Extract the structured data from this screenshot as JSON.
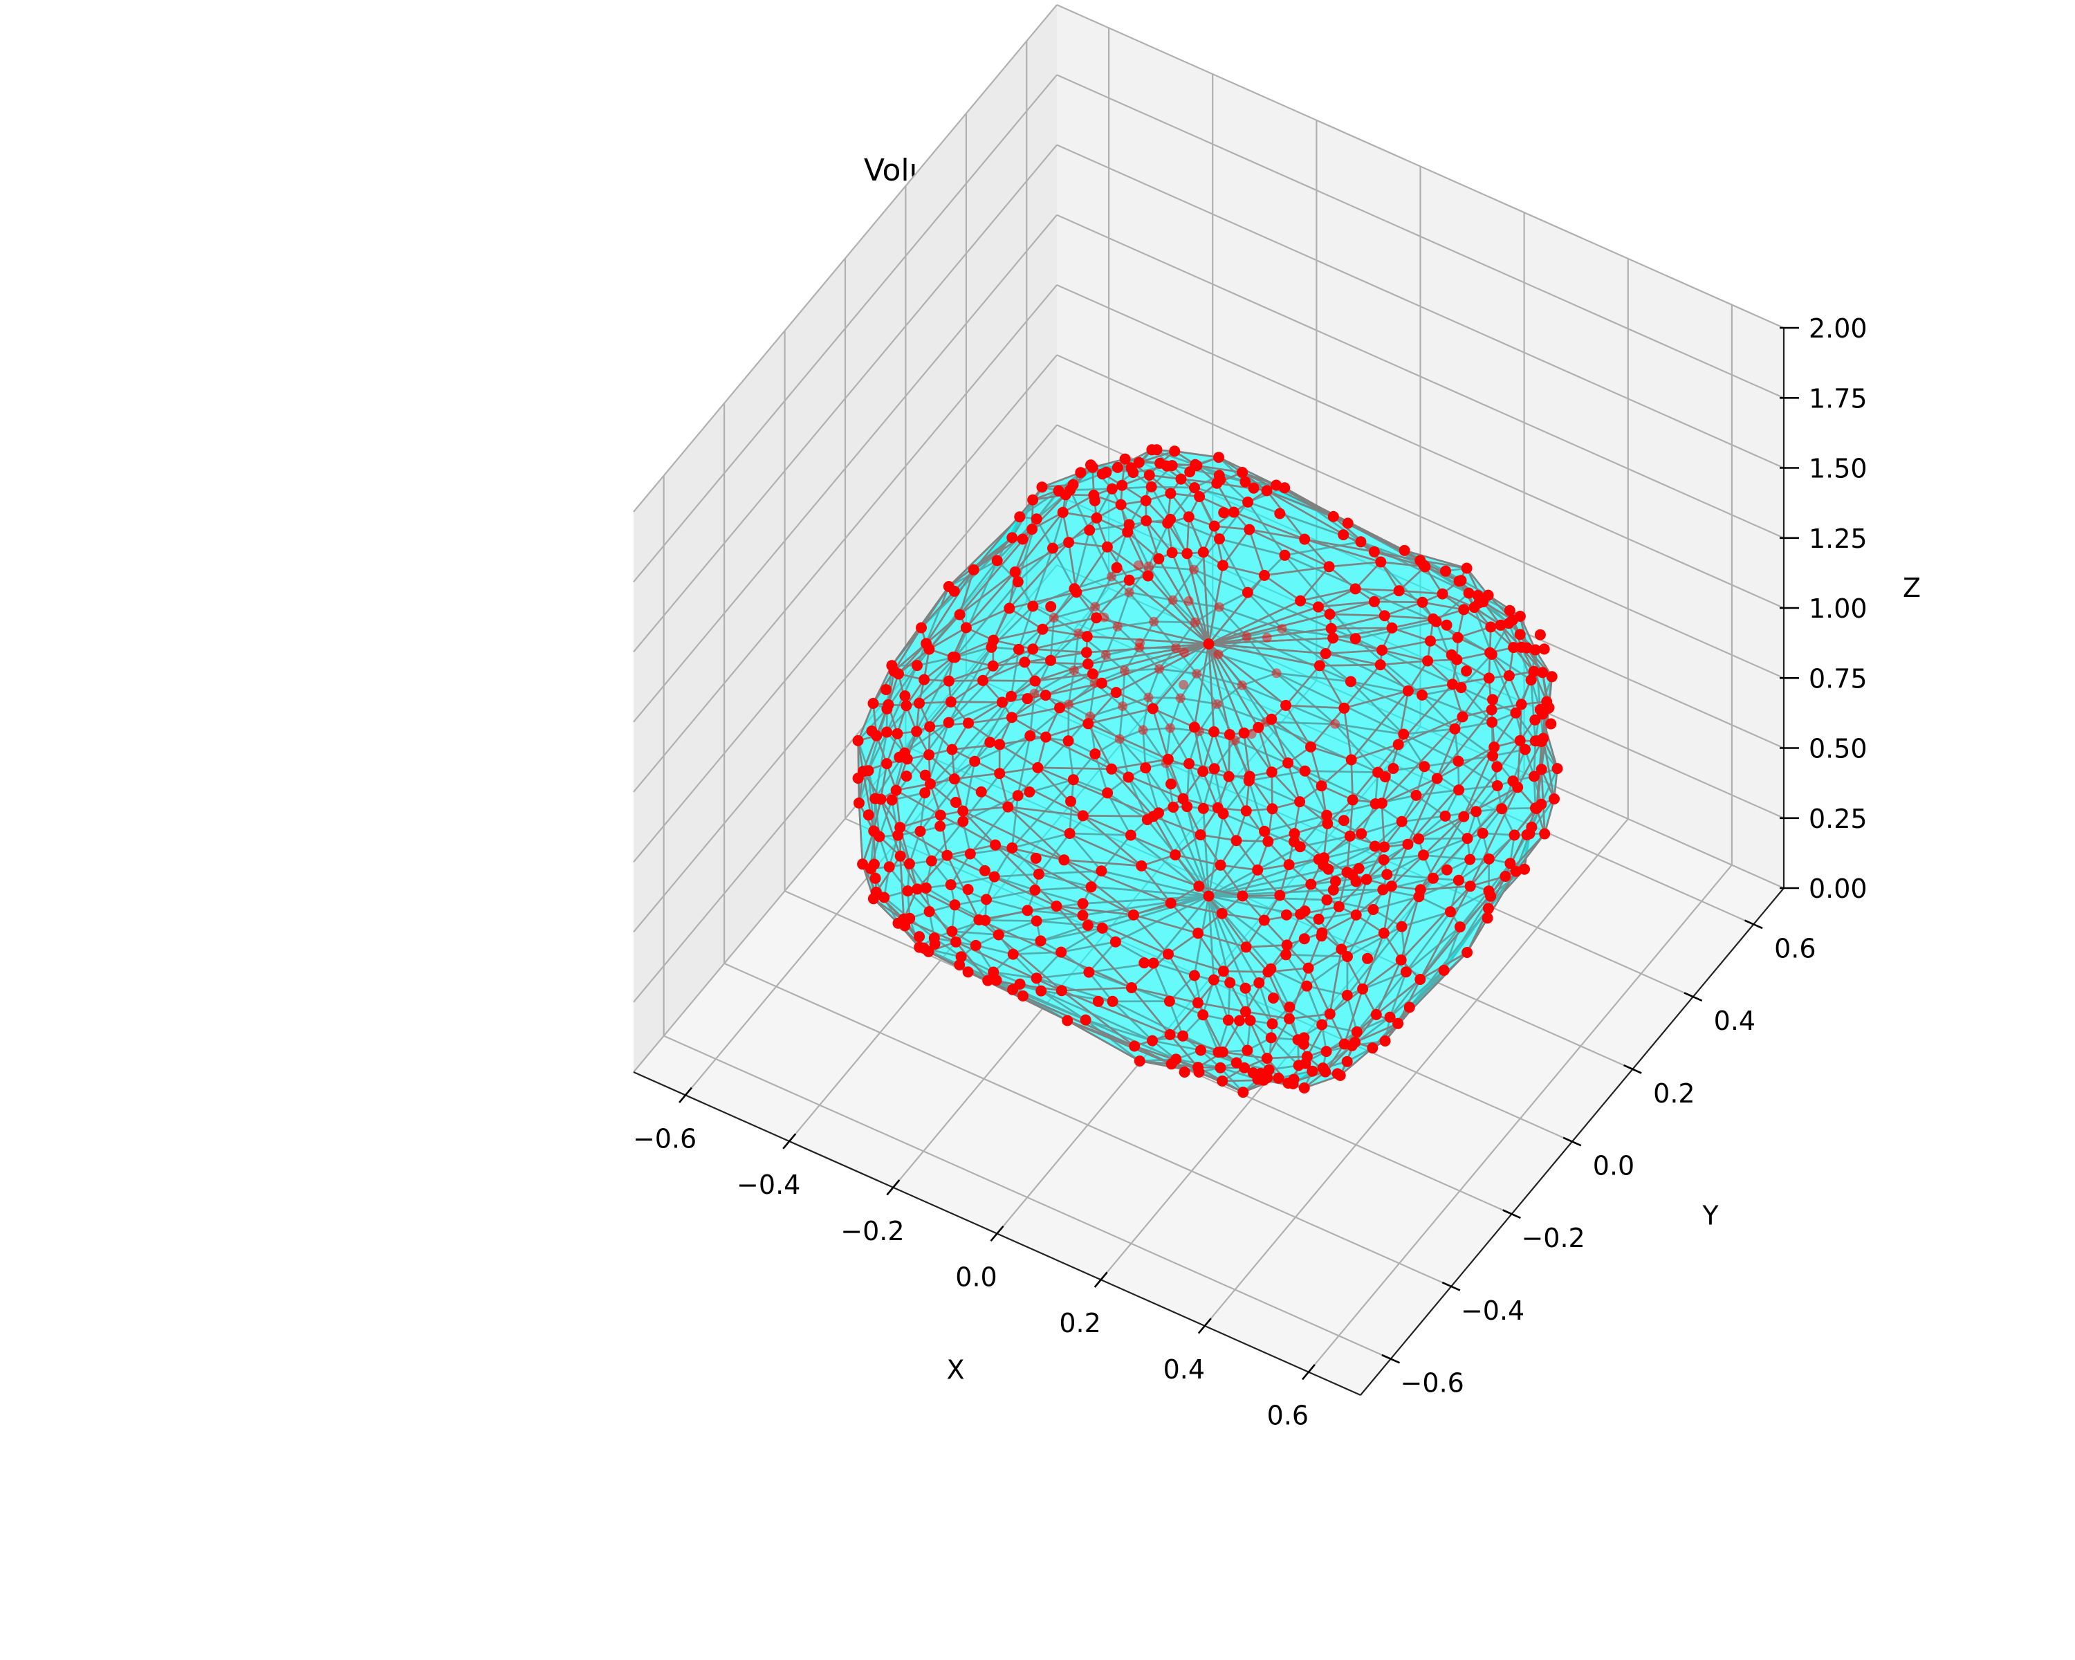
{
  "chart_data": {
    "type": "scatter",
    "subtype": "3d-surface-mesh",
    "title": "Volume Mesh Triangulation",
    "xlabel": "X",
    "ylabel": "Y",
    "zlabel": "Z",
    "xlim": [
      -0.7,
      0.7
    ],
    "ylim": [
      -0.7,
      0.7
    ],
    "zlim": [
      0.0,
      2.0
    ],
    "x_ticks": [
      "−0.6",
      "−0.4",
      "−0.2",
      "0.0",
      "0.2",
      "0.4",
      "0.6"
    ],
    "y_ticks": [
      "−0.6",
      "−0.4",
      "−0.2",
      "0.0",
      "0.2",
      "0.4",
      "0.6"
    ],
    "z_ticks": [
      "0.00",
      "0.25",
      "0.50",
      "0.75",
      "1.00",
      "1.25",
      "1.50",
      "1.75",
      "2.00"
    ],
    "surface": {
      "shape": "rounded superellipsoid (cushion)",
      "center": [
        0.0,
        0.0,
        0.75
      ],
      "half_extents": [
        0.5,
        0.5,
        0.45
      ],
      "face_color": "#00ffff",
      "face_alpha": 0.7,
      "edge_color": "#808080"
    },
    "points": {
      "color": "#ff0000",
      "marker": "o",
      "approx_count": 700
    },
    "grid": true,
    "pane_colors": [
      "#f2f2f2",
      "#ebebeb",
      "#f5f5f5"
    ]
  }
}
